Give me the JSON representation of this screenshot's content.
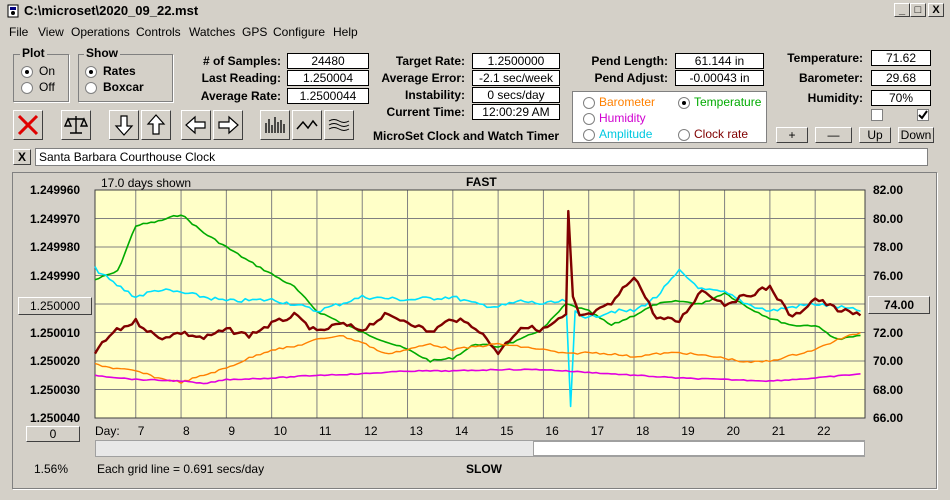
{
  "window": {
    "title": "C:\\microset\\2020_09_22.mst",
    "min": "_",
    "max": "□",
    "close": "X"
  },
  "menu": [
    "File",
    "View",
    "Operations",
    "Controls",
    "Watches",
    "GPS",
    "Configure",
    "Help"
  ],
  "plot_group": {
    "title": "Plot",
    "on": "On",
    "off": "Off",
    "selected": "On"
  },
  "show_group": {
    "title": "Show",
    "rates": "Rates",
    "boxcar": "Boxcar",
    "selected": "Rates"
  },
  "stats": {
    "samples_label": "# of Samples:",
    "samples": "24480",
    "last_label": "Last Reading:",
    "last": "1.250004",
    "avg_label": "Average Rate:",
    "avg": "1.2500044",
    "target_label": "Target Rate:",
    "target": "1.2500000",
    "error_label": "Average Error:",
    "error": "-2.1 sec/week",
    "instab_label": "Instability:",
    "instab": "0 secs/day",
    "time_label": "Current Time:",
    "time": "12:00:29 AM",
    "pendlen_label": "Pend Length:",
    "pendlen": "61.144 in",
    "pendadj_label": "Pend Adjust:",
    "pendadj": "-0.00043 in",
    "temp_label": "Temperature:",
    "temp": "71.62",
    "baro_label": "Barometer:",
    "baro": "29.68",
    "hum_label": "Humidity:",
    "hum": "70%"
  },
  "app_name": "MicroSet Clock and Watch Timer",
  "sensor_group": {
    "barometer": "Barometer",
    "temperature": "Temperature",
    "humidity": "Humidity",
    "amplitude": "Amplitude",
    "clockrate": "Clock rate",
    "selected": "Temperature"
  },
  "sensor_buttons": {
    "plus": "+",
    "minus": "—",
    "up": "Up",
    "down": "Down"
  },
  "watch_name": "Santa Barbara Courthouse Clock",
  "watch_close": "X",
  "chart_header": {
    "days_shown": "17.0 days shown",
    "fast": "FAST",
    "slow": "SLOW",
    "grid_note": "Each grid line = 0.691 secs/day",
    "pct": "1.56%",
    "day_label": "Day:",
    "left_button": "1.250000",
    "right_button": "74.00",
    "zero_button": "0"
  },
  "colors": {
    "rate": "#800000",
    "temperature": "#00aa00",
    "barometer": "#ff8000",
    "humidity": "#e000e0",
    "amplitude": "#00e0ff",
    "plot_bg": "#ffffc8"
  },
  "chart_data": {
    "type": "line",
    "title": "",
    "xlabel": "Day",
    "x_ticks": [
      7,
      8,
      9,
      10,
      11,
      12,
      13,
      14,
      15,
      16,
      17,
      18,
      19,
      20,
      21,
      22
    ],
    "xlim": [
      6.1,
      23.1
    ],
    "y_left_ticks": [
      "1.249960",
      "1.249970",
      "1.249980",
      "1.249990",
      "1.250000",
      "1.250010",
      "1.250020",
      "1.250030",
      "1.250040"
    ],
    "ylim_left": [
      1.24996,
      1.25004
    ],
    "y_right_ticks": [
      "82.00",
      "80.00",
      "78.00",
      "76.00",
      "74.00",
      "72.00",
      "70.00",
      "68.00",
      "66.00"
    ],
    "ylim_right": [
      66,
      82
    ],
    "grid": true,
    "series": [
      {
        "name": "Temperature",
        "axis": "right",
        "x": [
          6.1,
          6.6,
          7.0,
          7.5,
          8.0,
          8.5,
          9.5,
          10.5,
          11.0,
          12.0,
          13.0,
          13.5,
          14.0,
          14.5,
          15.0,
          15.5,
          16.0,
          16.5,
          17.0,
          17.5,
          18.0,
          18.5,
          19.0,
          19.5,
          20.0,
          20.5,
          21.0,
          21.5,
          22.0,
          22.5,
          23.0
        ],
        "y": [
          75.7,
          76.3,
          79.5,
          79.8,
          80.3,
          79.0,
          77.0,
          75.2,
          73.5,
          72.0,
          70.8,
          70.0,
          70.2,
          71.2,
          71.0,
          71.5,
          72.3,
          74.0,
          73.5,
          72.5,
          73.2,
          74.0,
          74.2,
          74.0,
          74.8,
          73.8,
          73.0,
          72.5,
          72.5,
          71.5,
          71.8
        ]
      },
      {
        "name": "Amplitude",
        "axis": "right",
        "x": [
          6.1,
          6.5,
          7.0,
          7.5,
          8.0,
          8.5,
          9.0,
          10.0,
          10.5,
          11.0,
          11.5,
          12.0,
          13.0,
          14.0,
          14.5,
          15.0,
          15.5,
          16.0,
          16.5,
          16.6,
          16.7,
          17.0,
          17.5,
          18.0,
          18.5,
          19.0,
          19.5,
          20.0,
          20.5,
          21.0,
          21.5,
          22.0,
          22.5,
          23.0
        ],
        "y": [
          76.5,
          75.5,
          74.5,
          75.0,
          74.8,
          74.5,
          74.2,
          74.3,
          74.0,
          73.5,
          74.0,
          74.5,
          74.3,
          74.5,
          74.0,
          73.8,
          74.2,
          74.0,
          74.2,
          66.7,
          73.5,
          73.0,
          73.5,
          73.5,
          74.5,
          76.3,
          75.0,
          74.8,
          74.0,
          73.5,
          73.8,
          74.0,
          73.8,
          73.5
        ]
      },
      {
        "name": "Rate",
        "axis": "left",
        "x": [
          6.1,
          6.5,
          7.0,
          7.5,
          8.0,
          8.5,
          9.0,
          9.5,
          10.0,
          10.5,
          11.0,
          11.5,
          12.0,
          12.5,
          13.0,
          13.5,
          14.0,
          14.5,
          15.0,
          15.5,
          16.0,
          16.5,
          16.55,
          16.65,
          16.8,
          17.0,
          17.5,
          18.0,
          18.5,
          19.0,
          19.5,
          20.0,
          20.5,
          21.0,
          21.5,
          22.0,
          22.5,
          23.0
        ],
        "y": [
          1.250017,
          1.25001,
          1.250006,
          1.250012,
          1.25001,
          1.250012,
          1.250009,
          1.250011,
          1.250007,
          1.250004,
          1.25001,
          1.250007,
          1.250009,
          1.250004,
          1.250006,
          1.25001,
          1.250005,
          1.250008,
          1.250017,
          1.250008,
          1.250009,
          1.250004,
          1.249968,
          1.249998,
          1.250004,
          1.250004,
          1.25,
          1.24999,
          1.250005,
          1.250006,
          1.249995,
          1.25,
          1.249997,
          1.249994,
          1.250005,
          1.249998,
          1.250002,
          1.250004
        ]
      },
      {
        "name": "Barometer",
        "axis": "right",
        "x": [
          6.1,
          6.5,
          7.0,
          7.5,
          8.0,
          8.5,
          9.0,
          9.5,
          10.0,
          10.5,
          11.0,
          11.5,
          12.0,
          12.5,
          13.0,
          13.5,
          14.0,
          14.5,
          15.0,
          15.5,
          16.0,
          16.5,
          17.0,
          17.5,
          18.0,
          18.5,
          19.0,
          19.5,
          20.0,
          20.5,
          21.0,
          21.5,
          22.0,
          22.5,
          23.0
        ],
        "y": [
          69.8,
          69.5,
          69.3,
          68.8,
          68.5,
          69.0,
          69.5,
          70.2,
          70.8,
          71.0,
          71.5,
          71.8,
          71.3,
          70.5,
          70.8,
          71.2,
          70.8,
          71.0,
          71.2,
          71.0,
          70.8,
          70.5,
          70.6,
          70.5,
          70.3,
          70.5,
          70.6,
          70.4,
          70.2,
          69.9,
          70.0,
          70.4,
          70.8,
          71.5,
          72.0
        ]
      },
      {
        "name": "Humidity",
        "axis": "right",
        "x": [
          6.1,
          7.0,
          8.0,
          8.5,
          9.0,
          10.0,
          11.0,
          12.0,
          13.0,
          14.0,
          15.0,
          16.0,
          16.5,
          17.0,
          17.5,
          18.0,
          19.0,
          20.0,
          21.0,
          22.0,
          23.0
        ],
        "y": [
          69.0,
          68.7,
          68.6,
          68.4,
          68.7,
          68.8,
          69.0,
          69.1,
          69.3,
          69.3,
          69.4,
          69.4,
          69.3,
          69.2,
          69.1,
          69.0,
          68.8,
          68.7,
          68.6,
          68.8,
          69.1
        ]
      }
    ]
  }
}
